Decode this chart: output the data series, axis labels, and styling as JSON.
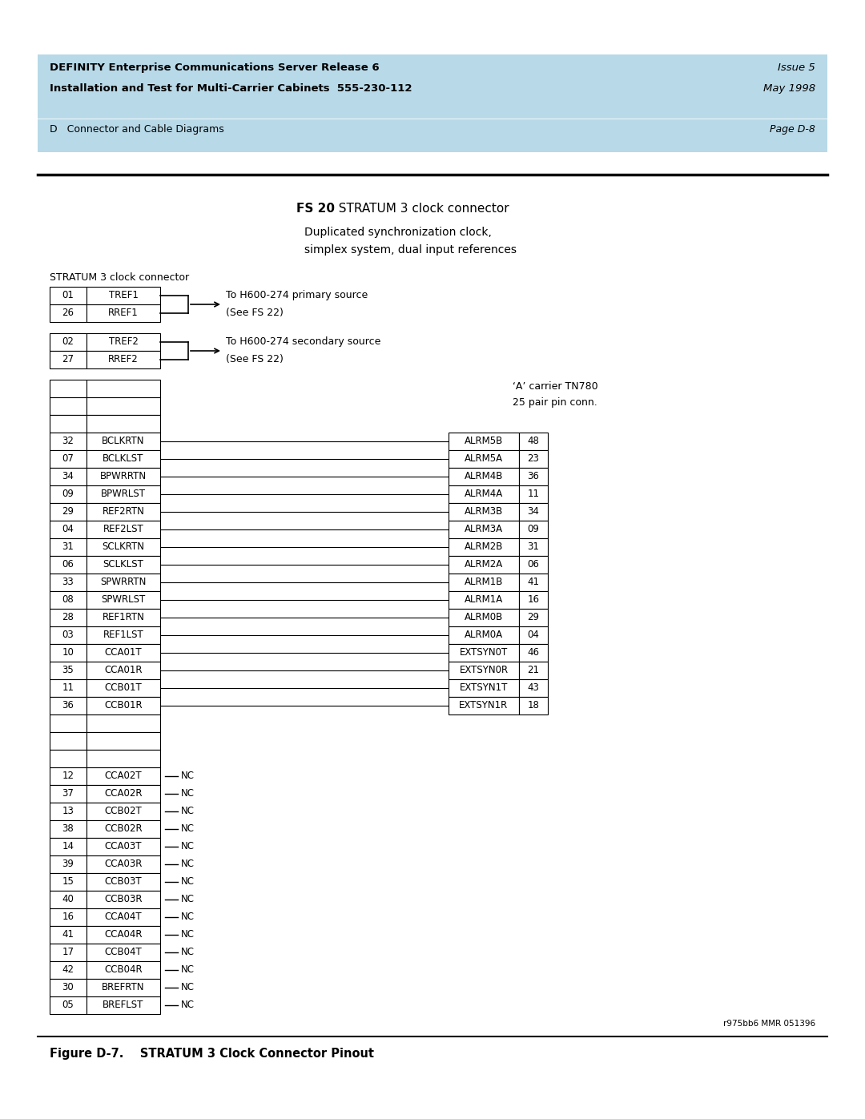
{
  "header_bg": "#b8d9e8",
  "header_line1": "DEFINITY Enterprise Communications Server Release 6",
  "header_line2": "Installation and Test for Multi-Carrier Cabinets  555-230-112",
  "header_right1": "Issue 5",
  "header_right2": "May 1998",
  "section_label": "D   Connector and Cable Diagrams",
  "page_label": "Page D-8",
  "fs_label": "FS 20",
  "fs_title": "  STRATUM 3 clock connector",
  "subtitle1": "Duplicated synchronization clock,",
  "subtitle2": "simplex system, dual input references",
  "stratum_label": "STRATUM 3 clock connector",
  "primary_rows": [
    {
      "pin": "01",
      "name": "TREF1"
    },
    {
      "pin": "26",
      "name": "RREF1"
    }
  ],
  "primary_arrow_text1": "To H600-274 primary source",
  "primary_arrow_text2": "(See FS 22)",
  "secondary_rows": [
    {
      "pin": "02",
      "name": "TREF2"
    },
    {
      "pin": "27",
      "name": "RREF2"
    }
  ],
  "secondary_arrow_text1": "To H600-274 secondary source",
  "secondary_arrow_text2": "(See FS 22)",
  "carrier_label1": "‘A’ carrier TN780",
  "carrier_label2": "25 pair pin conn.",
  "left_rows": [
    {
      "pin": "32",
      "name": "BCLKRTN"
    },
    {
      "pin": "07",
      "name": "BCLKLST"
    },
    {
      "pin": "34",
      "name": "BPWRRTN"
    },
    {
      "pin": "09",
      "name": "BPWRLST"
    },
    {
      "pin": "29",
      "name": "REF2RTN"
    },
    {
      "pin": "04",
      "name": "REF2LST"
    },
    {
      "pin": "31",
      "name": "SCLKRTN"
    },
    {
      "pin": "06",
      "name": "SCLKLST"
    },
    {
      "pin": "33",
      "name": "SPWRRTN"
    },
    {
      "pin": "08",
      "name": "SPWRLST"
    },
    {
      "pin": "28",
      "name": "REF1RTN"
    },
    {
      "pin": "03",
      "name": "REF1LST"
    },
    {
      "pin": "10",
      "name": "CCA01T"
    },
    {
      "pin": "35",
      "name": "CCA01R"
    },
    {
      "pin": "11",
      "name": "CCB01T"
    },
    {
      "pin": "36",
      "name": "CCB01R"
    }
  ],
  "right_rows": [
    {
      "name": "ALRM5B",
      "pin": "48"
    },
    {
      "name": "ALRM5A",
      "pin": "23"
    },
    {
      "name": "ALRM4B",
      "pin": "36"
    },
    {
      "name": "ALRM4A",
      "pin": "11"
    },
    {
      "name": "ALRM3B",
      "pin": "34"
    },
    {
      "name": "ALRM3A",
      "pin": "09"
    },
    {
      "name": "ALRM2B",
      "pin": "31"
    },
    {
      "name": "ALRM2A",
      "pin": "06"
    },
    {
      "name": "ALRM1B",
      "pin": "41"
    },
    {
      "name": "ALRM1A",
      "pin": "16"
    },
    {
      "name": "ALRM0B",
      "pin": "29"
    },
    {
      "name": "ALRM0A",
      "pin": "04"
    },
    {
      "name": "EXTSYN0T",
      "pin": "46"
    },
    {
      "name": "EXTSYN0R",
      "pin": "21"
    },
    {
      "name": "EXTSYN1T",
      "pin": "43"
    },
    {
      "name": "EXTSYN1R",
      "pin": "18"
    }
  ],
  "nc_rows": [
    {
      "pin": "12",
      "name": "CCA02T"
    },
    {
      "pin": "37",
      "name": "CCA02R"
    },
    {
      "pin": "13",
      "name": "CCB02T"
    },
    {
      "pin": "38",
      "name": "CCB02R"
    },
    {
      "pin": "14",
      "name": "CCA03T"
    },
    {
      "pin": "39",
      "name": "CCA03R"
    },
    {
      "pin": "15",
      "name": "CCB03T"
    },
    {
      "pin": "40",
      "name": "CCB03R"
    },
    {
      "pin": "16",
      "name": "CCA04T"
    },
    {
      "pin": "41",
      "name": "CCA04R"
    },
    {
      "pin": "17",
      "name": "CCB04T"
    },
    {
      "pin": "42",
      "name": "CCB04R"
    },
    {
      "pin": "30",
      "name": "BREFRTN"
    },
    {
      "pin": "05",
      "name": "BREFLST"
    }
  ],
  "watermark": "r975bb6 MMR 051396",
  "figure_caption": "Figure D-7.    STRATUM 3 Clock Connector Pinout",
  "bg_color": "#ffffff"
}
